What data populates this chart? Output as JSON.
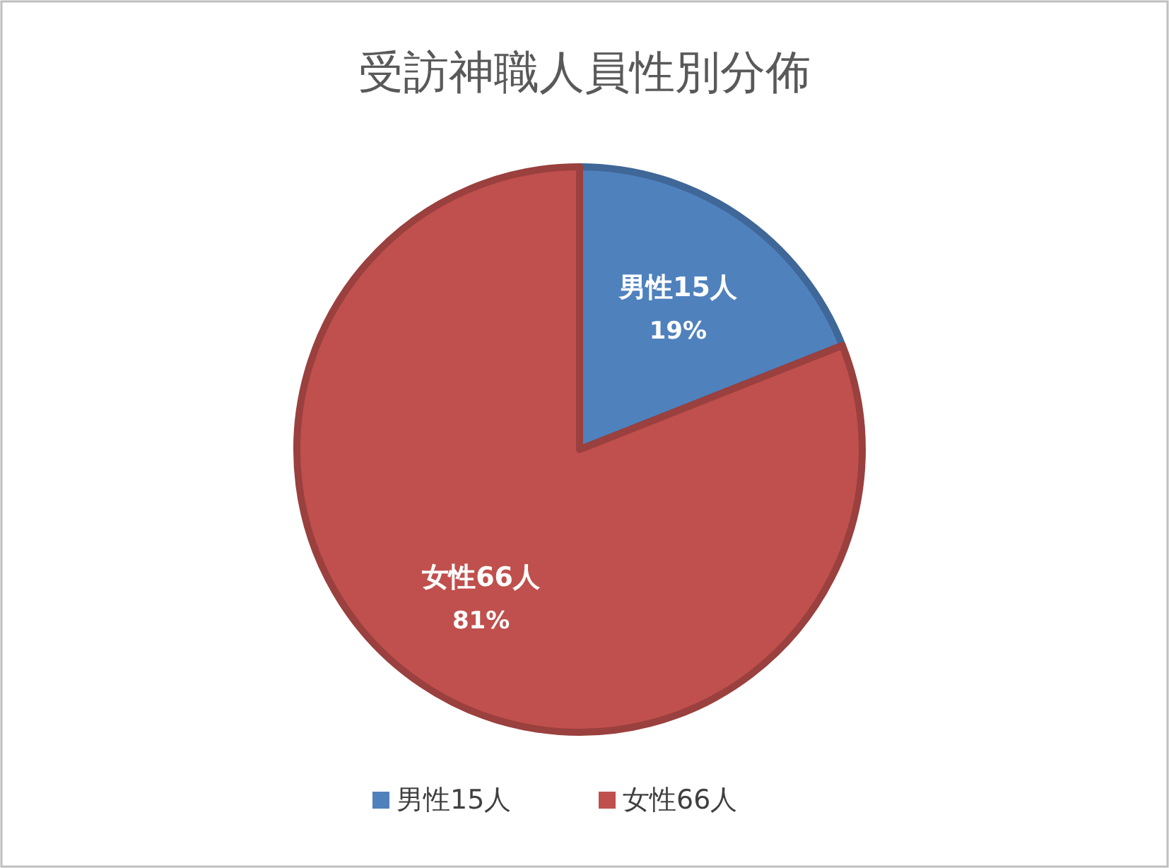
{
  "chart_data": {
    "type": "pie",
    "title": "受訪神職人員性別分佈",
    "categories": [
      "男性15人",
      "女性66人"
    ],
    "values": [
      19,
      81
    ],
    "colors": [
      "#4f81bd",
      "#c0504d"
    ],
    "value_labels": [
      "19%",
      "81%"
    ],
    "legend": "bottom"
  }
}
